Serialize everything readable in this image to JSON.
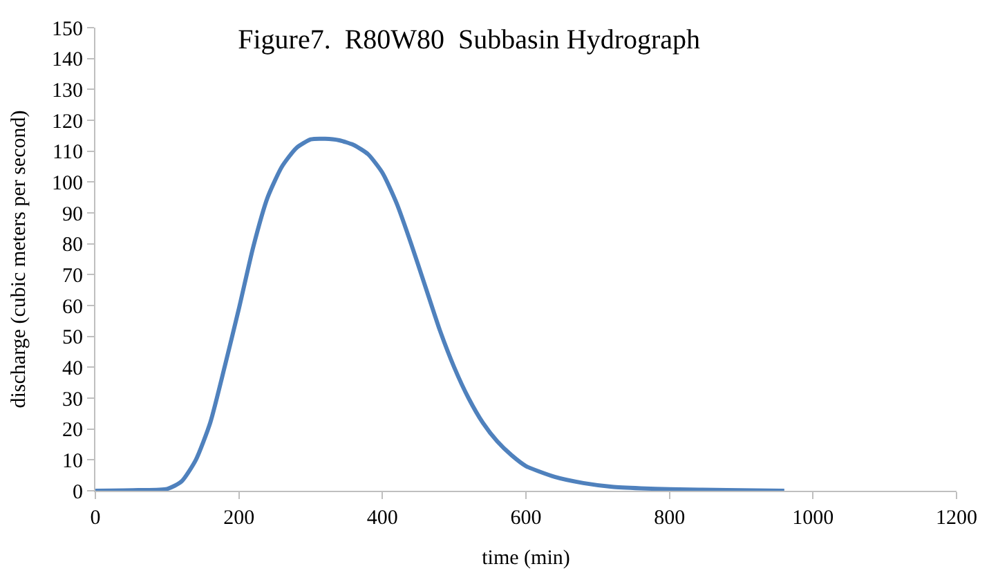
{
  "chart_data": {
    "type": "line",
    "title": "Figure7.  R80W80  Subbasin Hydrograph",
    "xlabel": "time (min)",
    "ylabel": "discharge (cubic meters per second)",
    "x": [
      0,
      60,
      100,
      120,
      140,
      160,
      180,
      200,
      220,
      240,
      260,
      280,
      300,
      320,
      340,
      360,
      380,
      400,
      420,
      440,
      460,
      480,
      500,
      520,
      540,
      560,
      580,
      600,
      640,
      680,
      720,
      760,
      800,
      880,
      960
    ],
    "series": [
      {
        "color": "#4f81bd",
        "values": [
          0,
          0.2,
          0.6,
          3,
          10,
          22,
          40,
          59,
          79,
          95,
          105,
          111,
          113.8,
          114,
          113.5,
          112,
          109,
          103,
          93,
          80,
          66,
          52,
          40,
          30,
          22,
          16,
          11.5,
          8,
          4.5,
          2.5,
          1.3,
          0.8,
          0.5,
          0.2,
          0
        ]
      }
    ],
    "xlim": [
      0,
      1200
    ],
    "xticks": [
      0,
      200,
      400,
      600,
      800,
      1000,
      1200
    ],
    "ylim": [
      0,
      150
    ],
    "yticks": [
      0,
      10,
      20,
      30,
      40,
      50,
      60,
      70,
      80,
      90,
      100,
      110,
      120,
      130,
      140,
      150
    ],
    "grid": false,
    "marker": "none",
    "line_style": "solid"
  }
}
